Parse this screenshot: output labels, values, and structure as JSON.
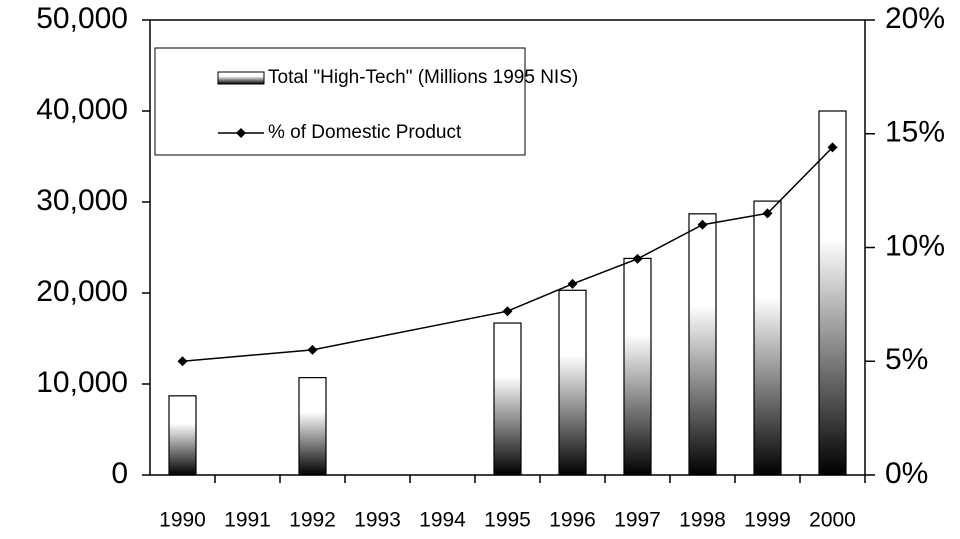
{
  "chart_data": {
    "type": "bar+line",
    "xlim": [
      1989.5,
      2000.5
    ],
    "xticks": [
      1990,
      1991,
      1992,
      1993,
      1994,
      1995,
      1996,
      1997,
      1998,
      1999,
      2000
    ],
    "x": [
      1990,
      1992,
      1995,
      1996,
      1997,
      1998,
      1999,
      2000
    ],
    "series": [
      {
        "name": "Total \"High-Tech\" (Millions 1995 NIS)",
        "type": "bar",
        "color": "#000000",
        "values": [
          8700,
          10700,
          16700,
          20300,
          23800,
          28700,
          30100,
          40000
        ]
      },
      {
        "name": "% of Domestic Product",
        "type": "line",
        "axis": "y2",
        "color": "#000000",
        "values": [
          5.0,
          5.5,
          7.2,
          8.4,
          9.5,
          11.0,
          11.5,
          14.4
        ]
      }
    ],
    "ylim": [
      0,
      50000
    ],
    "yticks": [
      0,
      {
        "value": 10000,
        "label": "10,000"
      },
      {
        "value": 20000,
        "label": "20,000"
      },
      {
        "value": 30000,
        "label": "30,000"
      },
      {
        "value": 40000,
        "label": "40,000"
      },
      {
        "value": 50000,
        "label": "50,000"
      }
    ],
    "y2lim": [
      0,
      20
    ],
    "y2ticks": [
      {
        "value": 0,
        "label": "0%"
      },
      {
        "value": 5,
        "label": "5%"
      },
      {
        "value": 10,
        "label": "10%"
      },
      {
        "value": 15,
        "label": "15%"
      },
      {
        "value": 20,
        "label": "20%"
      }
    ],
    "legend": "top-left"
  }
}
